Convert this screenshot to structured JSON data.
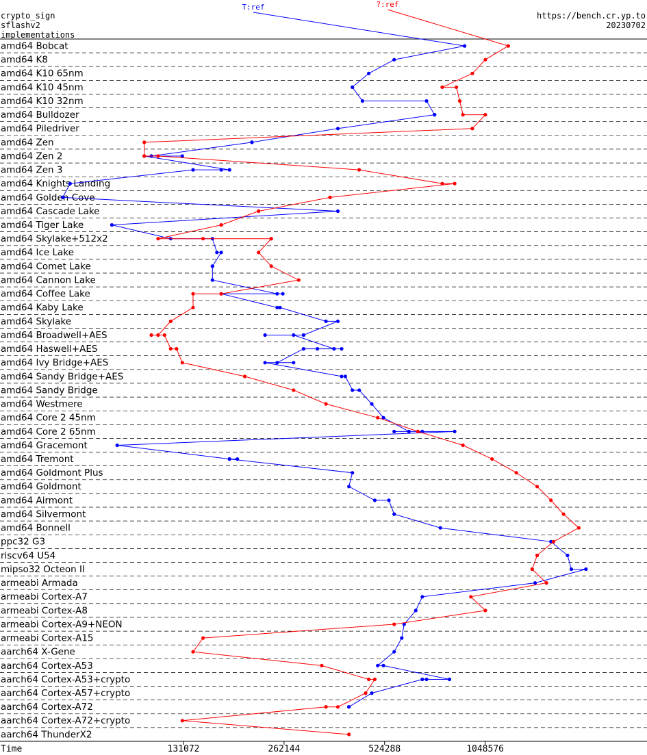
{
  "header": {
    "left": [
      "crypto_sign",
      "sflashv2",
      "implementations"
    ],
    "right": [
      "https://bench.cr.yp.to",
      "20230702"
    ]
  },
  "chart_data": {
    "type": "line",
    "title": "",
    "xlabel": "Time",
    "x_scale": "log2",
    "xlim": [
      37000,
      3200000
    ],
    "x_ticks": [
      131072,
      262144,
      524288,
      1048576
    ],
    "x_tick_labels": [
      "131072",
      "262144",
      "524288",
      "1048576"
    ],
    "y_categories": [
      "amd64 Bobcat",
      "amd64 K8",
      "amd64 K10 65nm",
      "amd64 K10 45nm",
      "amd64 K10 32nm",
      "amd64 Bulldozer",
      "amd64 Piledriver",
      "amd64 Zen",
      "amd64 Zen 2",
      "amd64 Zen 3",
      "amd64 Knights Landing",
      "amd64 Golden Cove",
      "amd64 Cascade Lake",
      "amd64 Tiger Lake",
      "amd64 Skylake+512x2",
      "amd64 Ice Lake",
      "amd64 Comet Lake",
      "amd64 Cannon Lake",
      "amd64 Coffee Lake",
      "amd64 Kaby Lake",
      "amd64 Skylake",
      "amd64 Broadwell+AES",
      "amd64 Haswell+AES",
      "amd64 Ivy Bridge+AES",
      "amd64 Sandy Bridge+AES",
      "amd64 Sandy Bridge",
      "amd64 Westmere",
      "amd64 Core 2 45nm",
      "amd64 Core 2 65nm",
      "amd64 Gracemont",
      "amd64 Tremont",
      "amd64 Goldmont Plus",
      "amd64 Goldmont",
      "amd64 Airmont",
      "amd64 Silvermont",
      "amd64 Bonnell",
      "ppc32 G3",
      "riscv64 U54",
      "mipso32 Octeon II",
      "armeabi Armada",
      "armeabi Cortex-A7",
      "armeabi Cortex-A8",
      "armeabi Cortex-A9+NEON",
      "armeabi Cortex-A15",
      "aarch64 X-Gene",
      "aarch64 Cortex-A53",
      "aarch64 Cortex-A53+crypto",
      "aarch64 Cortex-A57+crypto",
      "aarch64 Cortex-A72",
      "aarch64 Cortex-A72+crypto",
      "aarch64 ThunderX2"
    ],
    "series": [
      {
        "name": "T:ref",
        "color": "#0000ff",
        "points": [
          [
            0,
            910000
          ],
          [
            1,
            560000
          ],
          [
            2,
            470000
          ],
          [
            3,
            420000
          ],
          [
            4,
            450000
          ],
          [
            4,
            700000
          ],
          [
            5,
            740000
          ],
          [
            5,
            740000
          ],
          [
            6,
            380000
          ],
          [
            7,
            210000
          ],
          [
            7,
            210000
          ],
          [
            7,
            210000
          ],
          [
            8,
            105000
          ],
          [
            8,
            130000
          ],
          [
            8,
            100000
          ],
          [
            9,
            180000
          ],
          [
            9,
            170000
          ],
          [
            9,
            140000
          ],
          [
            10,
            60000
          ],
          [
            11,
            57000
          ],
          [
            12,
            380000
          ],
          [
            13,
            80000
          ],
          [
            14,
            120000
          ],
          [
            14,
            160000
          ],
          [
            15,
            165000
          ],
          [
            15,
            170000
          ],
          [
            16,
            160000
          ],
          [
            16,
            160000
          ],
          [
            17,
            160000
          ],
          [
            18,
            250000
          ],
          [
            18,
            260000
          ],
          [
            18,
            170000
          ],
          [
            19,
            250000
          ],
          [
            19,
            255000
          ],
          [
            20,
            350000
          ],
          [
            20,
            380000
          ],
          [
            21,
            300000
          ],
          [
            21,
            230000
          ],
          [
            21,
            280000
          ],
          [
            22,
            370000
          ],
          [
            22,
            330000
          ],
          [
            22,
            390000
          ],
          [
            22,
            300000
          ],
          [
            23,
            250000
          ],
          [
            23,
            280000
          ],
          [
            23,
            230000
          ],
          [
            24,
            390000
          ],
          [
            24,
            400000
          ],
          [
            25,
            420000
          ],
          [
            25,
            440000
          ],
          [
            26,
            480000
          ],
          [
            27,
            520000
          ],
          [
            28,
            620000
          ],
          [
            28,
            560000
          ],
          [
            28,
            680000
          ],
          [
            28,
            850000
          ],
          [
            29,
            83000
          ],
          [
            30,
            180000
          ],
          [
            30,
            190000
          ],
          [
            30,
            180000
          ],
          [
            31,
            420000
          ],
          [
            32,
            410000
          ],
          [
            33,
            490000
          ],
          [
            33,
            540000
          ],
          [
            34,
            560000
          ],
          [
            35,
            770000
          ],
          [
            36,
            1650000
          ],
          [
            37,
            1850000
          ],
          [
            38,
            1900000
          ],
          [
            38,
            2100000
          ],
          [
            39,
            1480000
          ],
          [
            40,
            680000
          ],
          [
            41,
            650000
          ],
          [
            42,
            600000
          ],
          [
            43,
            590000
          ],
          [
            44,
            560000
          ],
          [
            45,
            500000
          ],
          [
            45,
            520000
          ],
          [
            46,
            820000
          ],
          [
            46,
            700000
          ],
          [
            46,
            680000
          ],
          [
            47,
            480000
          ],
          [
            48,
            410000
          ],
          [
            48,
            410000
          ]
        ]
      },
      {
        "name": "?:ref",
        "color": "#ff0000",
        "points": [
          [
            0,
            1230000
          ],
          [
            1,
            1050000
          ],
          [
            2,
            960000
          ],
          [
            3,
            780000
          ],
          [
            3,
            860000
          ],
          [
            4,
            880000
          ],
          [
            5,
            900000
          ],
          [
            5,
            1050000
          ],
          [
            6,
            960000
          ],
          [
            7,
            100000
          ],
          [
            8,
            100000
          ],
          [
            8,
            110000
          ],
          [
            9,
            440000
          ],
          [
            10,
            780000
          ],
          [
            10,
            850000
          ],
          [
            11,
            360000
          ],
          [
            12,
            220000
          ],
          [
            13,
            170000
          ],
          [
            14,
            110000
          ],
          [
            14,
            150000
          ],
          [
            14,
            240000
          ],
          [
            14,
            240000
          ],
          [
            15,
            220000
          ],
          [
            16,
            240000
          ],
          [
            17,
            290000
          ],
          [
            18,
            170000
          ],
          [
            18,
            140000
          ],
          [
            19,
            140000
          ],
          [
            20,
            120000
          ],
          [
            21,
            110000
          ],
          [
            21,
            105000
          ],
          [
            21,
            115000
          ],
          [
            22,
            120000
          ],
          [
            22,
            125000
          ],
          [
            23,
            130000
          ],
          [
            24,
            200000
          ],
          [
            25,
            280000
          ],
          [
            26,
            350000
          ],
          [
            27,
            500000
          ],
          [
            28,
            660000
          ],
          [
            29,
            900000
          ],
          [
            30,
            1100000
          ],
          [
            31,
            1300000
          ],
          [
            32,
            1500000
          ],
          [
            33,
            1650000
          ],
          [
            34,
            1800000
          ],
          [
            35,
            2000000
          ],
          [
            36,
            1680000
          ],
          [
            37,
            1500000
          ],
          [
            38,
            1450000
          ],
          [
            39,
            1600000
          ],
          [
            40,
            950000
          ],
          [
            41,
            1050000
          ],
          [
            42,
            560000
          ],
          [
            43,
            150000
          ],
          [
            44,
            140000
          ],
          [
            45,
            340000
          ],
          [
            46,
            470000
          ],
          [
            46,
            490000
          ],
          [
            47,
            460000
          ],
          [
            48,
            380000
          ],
          [
            48,
            350000
          ],
          [
            49,
            130000
          ],
          [
            50,
            410000
          ]
        ]
      }
    ],
    "grid": true,
    "legend": "series labels above the chart"
  }
}
